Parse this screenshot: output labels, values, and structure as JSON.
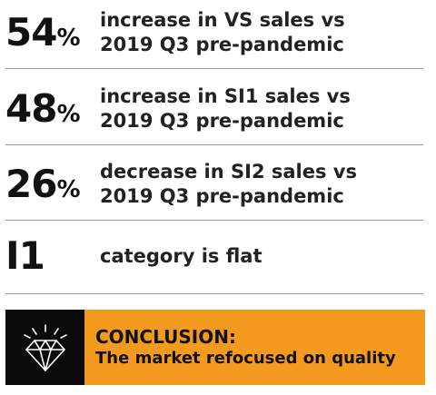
{
  "stats": [
    {
      "number": "54",
      "unit": "%",
      "line1": "increase in VS sales vs",
      "line2": "2019 Q3 pre-pandemic"
    },
    {
      "number": "48",
      "unit": "%",
      "line1": "increase in SI1 sales vs",
      "line2": "2019 Q3 pre-pandemic"
    },
    {
      "number": "26",
      "unit": "%",
      "line1": "decrease in SI2 sales vs",
      "line2": "2019 Q3 pre-pandemic"
    },
    {
      "number": "I1",
      "unit": "",
      "line1": "category is flat",
      "line2": ""
    }
  ],
  "conclusion": {
    "icon": "diamond-icon",
    "title": "CONCLUSION:",
    "text": "The market refocused on quality"
  },
  "colors": {
    "accent": "#f39a1f",
    "icon_background": "#0b0b0b",
    "divider": "#999999",
    "text": "#111111"
  }
}
